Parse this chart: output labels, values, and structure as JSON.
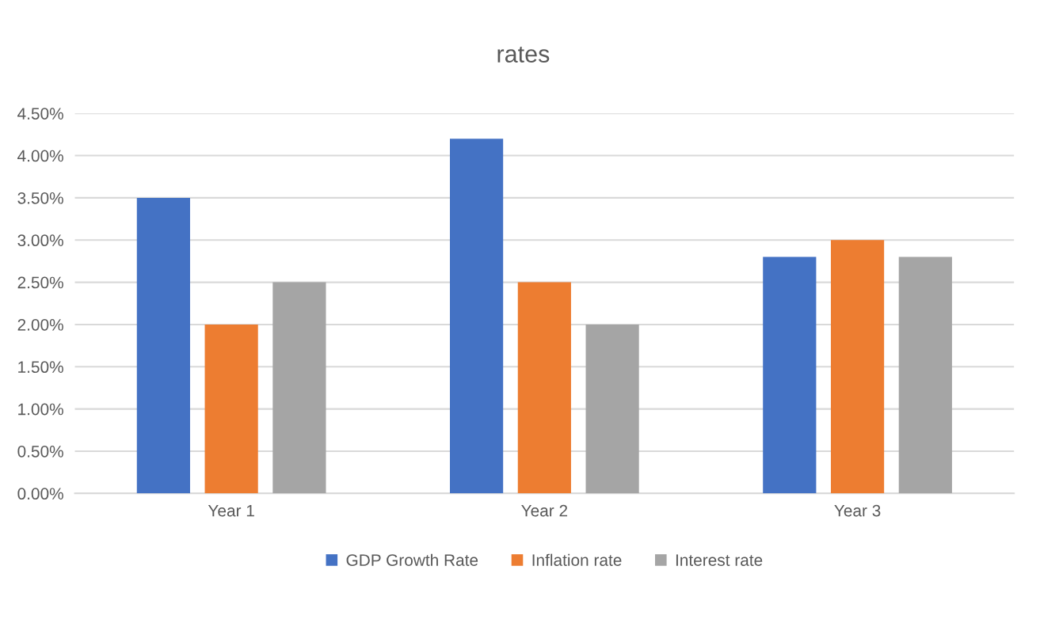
{
  "chart_data": {
    "type": "bar",
    "title": "rates",
    "categories": [
      "Year 1",
      "Year 2",
      "Year 3"
    ],
    "series": [
      {
        "name": "GDP Growth Rate",
        "color": "#4472c4",
        "values": [
          3.5,
          4.2,
          2.8
        ]
      },
      {
        "name": "Inflation rate",
        "color": "#ed7d31",
        "values": [
          2.0,
          2.5,
          3.0
        ]
      },
      {
        "name": "Interest rate",
        "color": "#a5a5a5",
        "values": [
          2.5,
          2.0,
          2.8
        ]
      }
    ],
    "ylim": [
      0,
      4.5
    ],
    "yticks": [
      {
        "value": 0,
        "label": "0.00%"
      },
      {
        "value": 0.5,
        "label": "0.50%"
      },
      {
        "value": 1.0,
        "label": "1.00%"
      },
      {
        "value": 1.5,
        "label": "1.50%"
      },
      {
        "value": 2.0,
        "label": "2.00%"
      },
      {
        "value": 2.5,
        "label": "2.50%"
      },
      {
        "value": 3.0,
        "label": "3.00%"
      },
      {
        "value": 3.5,
        "label": "3.50%"
      },
      {
        "value": 4.0,
        "label": "4.00%"
      },
      {
        "value": 4.5,
        "label": "4.50%"
      }
    ],
    "grid": "y",
    "legend": "bottom"
  }
}
